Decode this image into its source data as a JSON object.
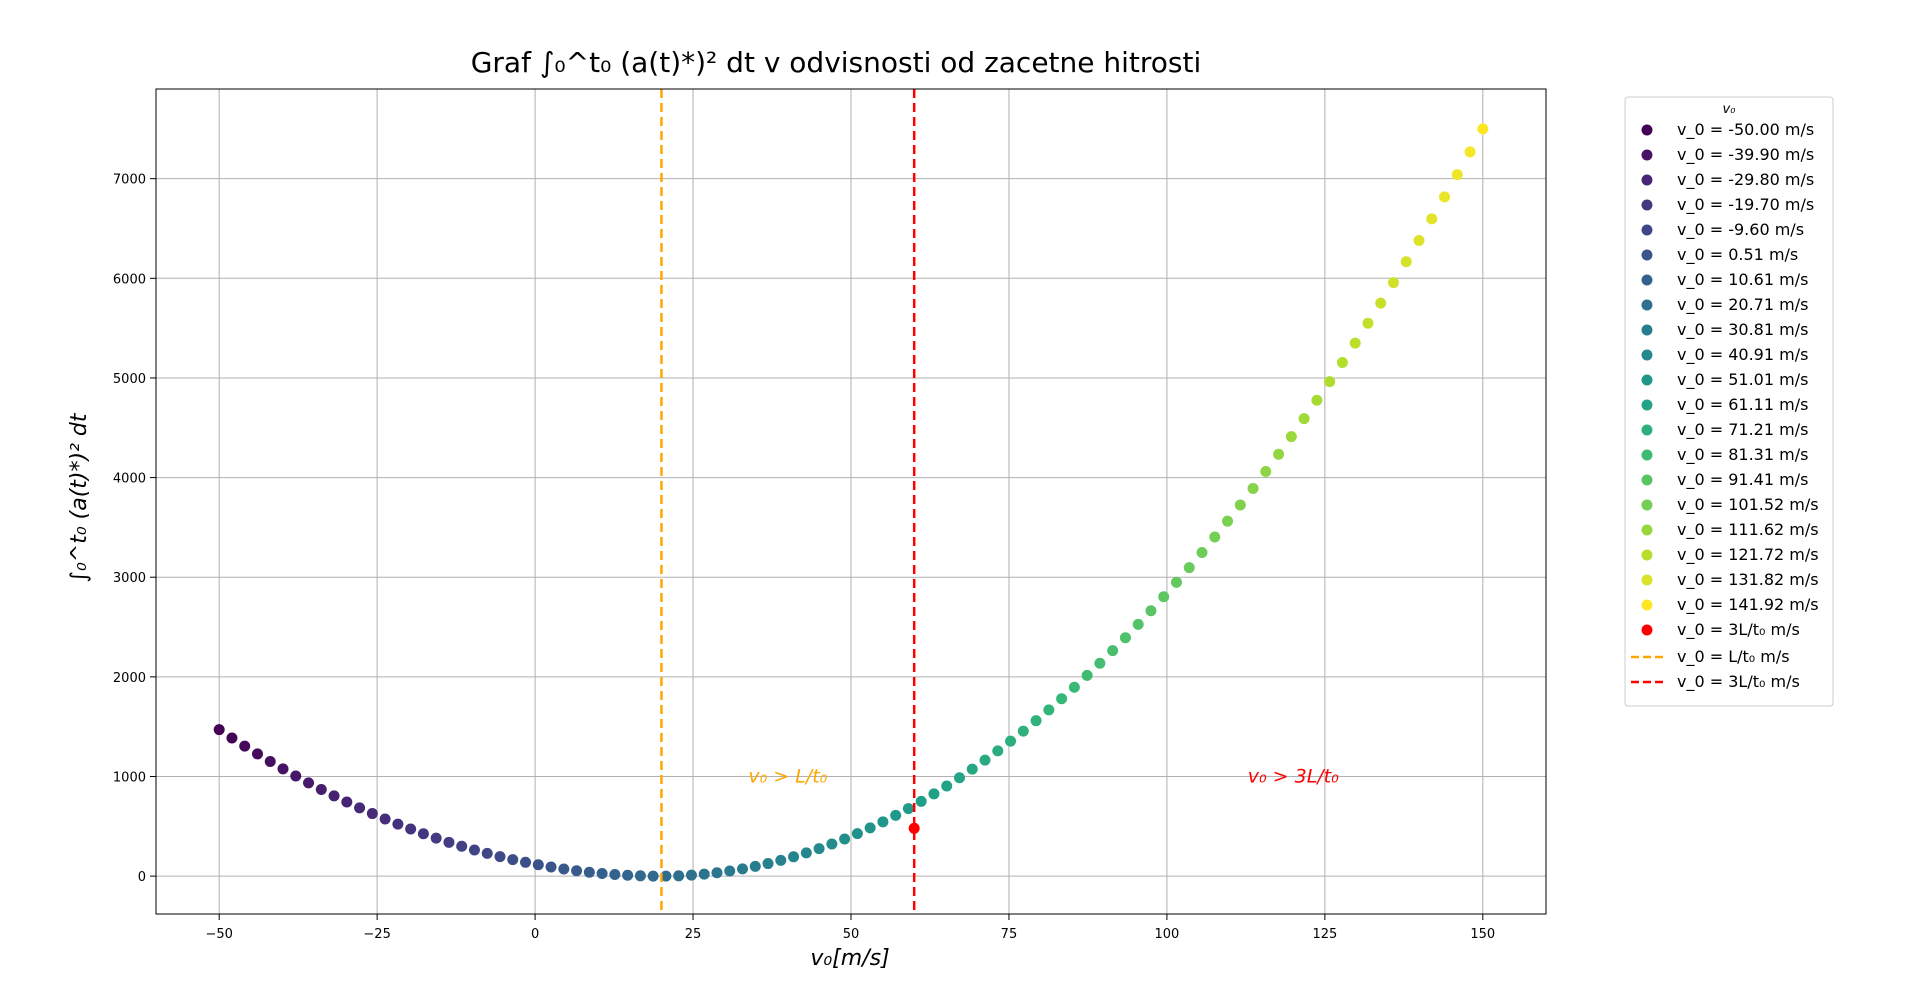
{
  "chart_data": {
    "type": "scatter",
    "title": "Graf ∫₀^t₀ (a(t)*)² dt v odvisnosti od zacetne hitrosti",
    "xlabel": "v₀[m/s]",
    "ylabel": "∫₀^t₀ (a(t)*)² dt",
    "xlim": [
      -60,
      160
    ],
    "ylim": [
      -380,
      7900
    ],
    "x_ticks": [
      "−50",
      "−25",
      "0",
      "25",
      "50",
      "75",
      "100",
      "125",
      "150"
    ],
    "x_tick_values": [
      -50,
      -25,
      0,
      25,
      50,
      75,
      100,
      125,
      150
    ],
    "y_ticks": [
      "0",
      "1000",
      "2000",
      "3000",
      "4000",
      "5000",
      "6000",
      "7000"
    ],
    "y_tick_values": [
      0,
      1000,
      2000,
      3000,
      4000,
      5000,
      6000,
      7000
    ],
    "grid": true,
    "legend_title": "v₀",
    "legend_placement": "outside-top-right",
    "curve": {
      "x_start": -50,
      "x_end": 150,
      "n_points": 100,
      "vertex_x": 20,
      "value_at_start": 1470,
      "value_at_end": 7500,
      "color_scale": "viridis",
      "legend_entries": [
        "v_0 = -50.00 m/s",
        "v_0 = -39.90 m/s",
        "v_0 = -29.80 m/s",
        "v_0 = -19.70 m/s",
        "v_0 = -9.60 m/s",
        "v_0 = 0.51 m/s",
        "v_0 = 10.61 m/s",
        "v_0 = 20.71 m/s",
        "v_0 = 30.81 m/s",
        "v_0 = 40.91 m/s",
        "v_0 = 51.01 m/s",
        "v_0 = 61.11 m/s",
        "v_0 = 71.21 m/s",
        "v_0 = 81.31 m/s",
        "v_0 = 91.41 m/s",
        "v_0 = 101.52 m/s",
        "v_0 = 111.62 m/s",
        "v_0 = 121.72 m/s",
        "v_0 = 131.82 m/s",
        "v_0 = 141.92 m/s"
      ]
    },
    "special_point": {
      "x": 60,
      "y": 480,
      "color": "#ff0000",
      "legend": "v_0 = 3L/t₀ m/s"
    },
    "vlines": [
      {
        "x": 20,
        "color": "#ffa500",
        "style": "dashed",
        "legend": "v_0 = L/t₀ m/s"
      },
      {
        "x": 60,
        "color": "#ff0000",
        "style": "dashed",
        "legend": "v_0 = 3L/t₀ m/s"
      }
    ],
    "annotations": [
      {
        "text": "v₀ > L/t₀",
        "x": 40,
        "y": 1000,
        "color": "#ffa500"
      },
      {
        "text": "v₀ > 3L/t₀",
        "x": 120,
        "y": 1000,
        "color": "#ff0000"
      }
    ]
  }
}
